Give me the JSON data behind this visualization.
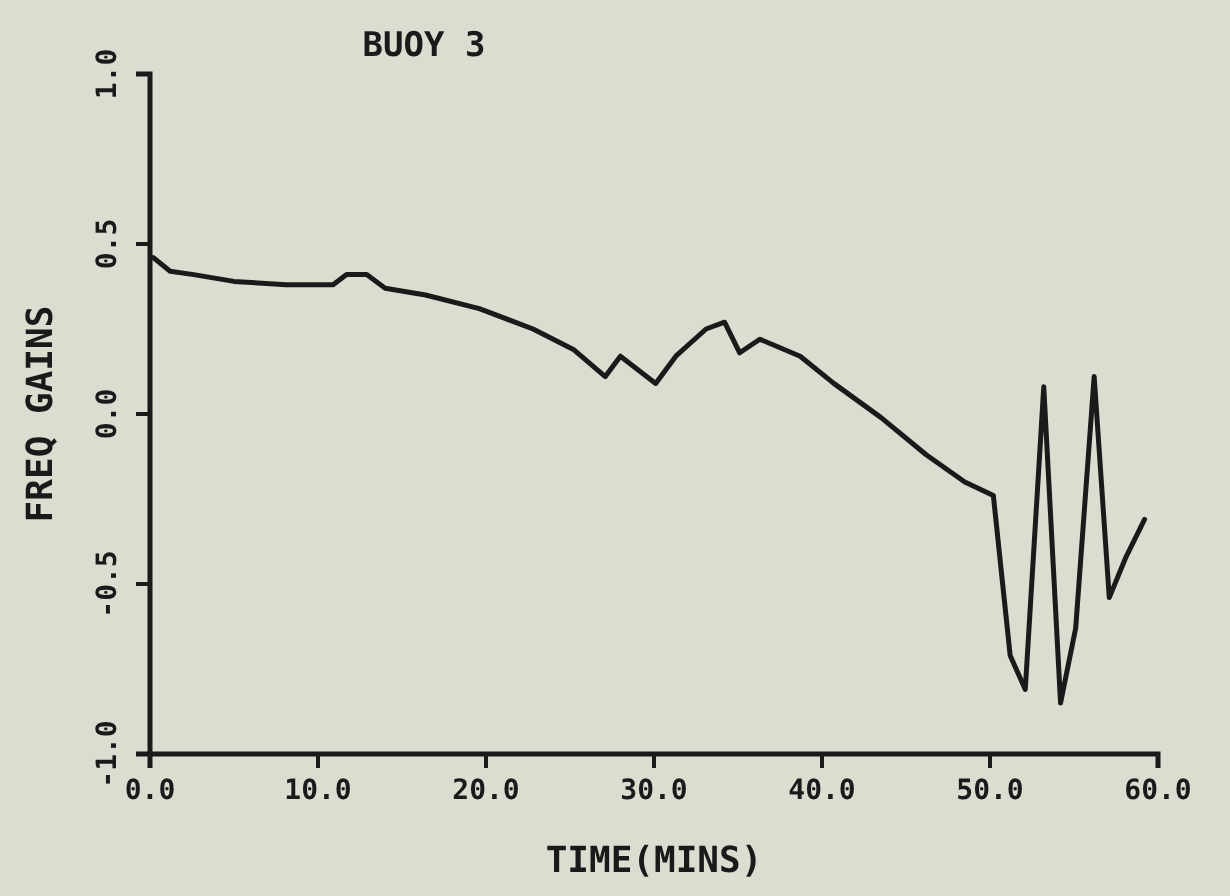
{
  "chart_data": {
    "type": "line",
    "title": "BUOY 3",
    "xlabel": "TIME(MINS)",
    "ylabel": "FREQ GAINS",
    "xlim": [
      0,
      60
    ],
    "xticks": [
      {
        "value": 0,
        "label": "0.0"
      },
      {
        "value": 10,
        "label": "10.0"
      },
      {
        "value": 20,
        "label": "20.0"
      },
      {
        "value": 30,
        "label": "30.0"
      },
      {
        "value": 40,
        "label": "40.0"
      },
      {
        "value": 50,
        "label": "50.0"
      },
      {
        "value": 60,
        "label": "60.0"
      }
    ],
    "ylim": [
      -1,
      1
    ],
    "yticks": [
      {
        "value": -1,
        "label": "-1.0"
      },
      {
        "value": -0.5,
        "label": "-0.5"
      },
      {
        "value": 0,
        "label": "0.0"
      },
      {
        "value": 0.5,
        "label": "0.5"
      },
      {
        "value": 1,
        "label": "1.0"
      }
    ],
    "marker": "none",
    "line_style": "solid",
    "series": [
      {
        "color": "#1a1a1a",
        "x": [
          0.2,
          1.2,
          2.6,
          5,
          8.1,
          10.9,
          11.7,
          12.9,
          14,
          16.4,
          19.6,
          22.8,
          25.2,
          27.1,
          28,
          30.1,
          31.3,
          33.1,
          34.2,
          35.1,
          36.3,
          38.7,
          40.7,
          43.5,
          46.2,
          48.5,
          50.2,
          51.2,
          52.1,
          53.2,
          54.2,
          55.1,
          56.2,
          57.1,
          58.1,
          59.2
        ],
        "values": [
          0.46,
          0.42,
          0.41,
          0.39,
          0.38,
          0.38,
          0.41,
          0.41,
          0.37,
          0.35,
          0.31,
          0.25,
          0.19,
          0.11,
          0.17,
          0.09,
          0.17,
          0.25,
          0.27,
          0.18,
          0.22,
          0.17,
          0.09,
          -0.01,
          -0.12,
          -0.2,
          -0.24,
          -0.71,
          -0.81,
          0.08,
          -0.85,
          -0.63,
          0.11,
          -0.54,
          -0.42,
          -0.31
        ]
      }
    ]
  }
}
